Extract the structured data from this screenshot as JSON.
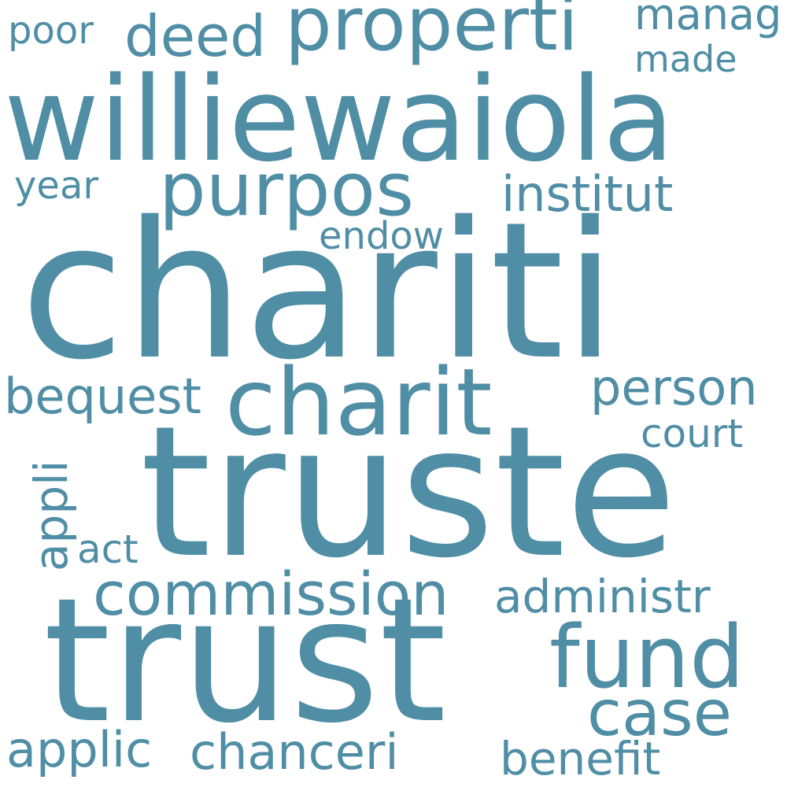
{
  "word_cloud": {
    "color": "#4f8ea5",
    "words": [
      {
        "text": "chariti"
      },
      {
        "text": "truste"
      },
      {
        "text": "trust"
      },
      {
        "text": "williewaiola"
      },
      {
        "text": "charit"
      },
      {
        "text": "properti"
      },
      {
        "text": "purpos"
      },
      {
        "text": "fund"
      },
      {
        "text": "commission"
      },
      {
        "text": "case"
      },
      {
        "text": "deed"
      },
      {
        "text": "institut"
      },
      {
        "text": "person"
      },
      {
        "text": "bequest"
      },
      {
        "text": "administr"
      },
      {
        "text": "applic"
      },
      {
        "text": "chanceri"
      },
      {
        "text": "benefit"
      },
      {
        "text": "endow"
      },
      {
        "text": "manag"
      },
      {
        "text": "made"
      },
      {
        "text": "poor"
      },
      {
        "text": "year"
      },
      {
        "text": "court"
      },
      {
        "text": "act"
      },
      {
        "text": "appli"
      }
    ]
  }
}
